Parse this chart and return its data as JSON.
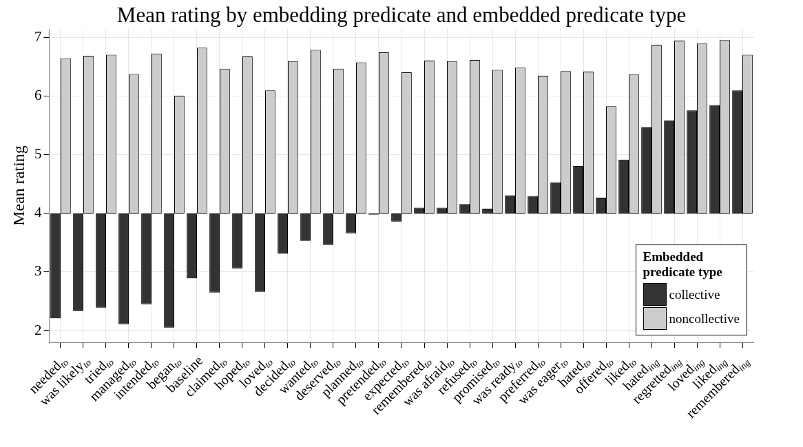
{
  "chart_data": {
    "type": "bar",
    "title": "Mean rating by embedding predicate and embedded predicate type",
    "ylabel": "Mean rating",
    "legend_title": "Embedded predicate type",
    "categories": [
      "needed$_{to}$",
      "was likely$_{to}$",
      "tried$_{to}$",
      "managed$_{to}$",
      "intended$_{to}$",
      "began$_{to}$",
      "baseline",
      "claimed$_{to}$",
      "hoped$_{to}$",
      "loved$_{to}$",
      "decided$_{to}$",
      "wanted$_{to}$",
      "deserved$_{to}$",
      "planned$_{to}$",
      "pretended$_{to}$",
      "expected$_{to}$",
      "remembered$_{to}$",
      "was afraid$_{to}$",
      "refused$_{to}$",
      "promised$_{to}$",
      "was ready$_{to}$",
      "preferred$_{to}$",
      "was eager$_{to}$",
      "hated$_{to}$",
      "offered$_{to}$",
      "liked$_{to}$",
      "hated$_{ing}$",
      "regretted$_{ing}$",
      "loved$_{ing}$",
      "liked$_{ing}$",
      "remembered$_{ing}$"
    ],
    "series": [
      {
        "name": "collective",
        "color": "#333333",
        "base": [
          4,
          4,
          4,
          4,
          4,
          4,
          4,
          4,
          4,
          4,
          4,
          4,
          4,
          4,
          4,
          4,
          4,
          4,
          4,
          4,
          4,
          4,
          4,
          4,
          4,
          4,
          4,
          4,
          4,
          4,
          4
        ],
        "values": [
          -1.79,
          -1.66,
          -1.61,
          -1.89,
          -1.55,
          -1.95,
          -1.11,
          -1.35,
          -0.94,
          -1.34,
          -0.69,
          -0.47,
          -0.54,
          -0.34,
          -0.02,
          -0.14,
          0.1,
          0.1,
          0.16,
          0.08,
          0.31,
          0.3,
          0.53,
          0.81,
          0.27,
          0.92,
          1.47,
          1.59,
          1.76,
          1.85,
          2.1
        ]
      },
      {
        "name": "noncollective",
        "color": "#cccccc",
        "base": [
          4,
          4,
          4,
          4,
          4,
          4,
          4,
          4,
          4,
          4,
          4,
          4,
          4,
          4,
          4,
          4,
          4,
          4,
          4,
          4,
          4,
          4,
          4,
          4,
          4,
          4,
          4,
          4,
          4,
          4,
          4
        ],
        "values": [
          2.65,
          2.69,
          2.71,
          2.38,
          2.73,
          2.01,
          2.83,
          2.47,
          2.68,
          2.1,
          2.6,
          2.79,
          2.47,
          2.58,
          2.75,
          2.41,
          2.61,
          2.6,
          2.62,
          2.45,
          2.49,
          2.35,
          2.43,
          2.42,
          1.83,
          2.37,
          2.88,
          2.95,
          2.9,
          2.96,
          2.71
        ]
      }
    ],
    "ylim": [
      1.8,
      7.15
    ],
    "yticks": [
      2,
      3,
      4,
      5,
      6,
      7
    ],
    "grid": true,
    "legend": "bottom right"
  }
}
